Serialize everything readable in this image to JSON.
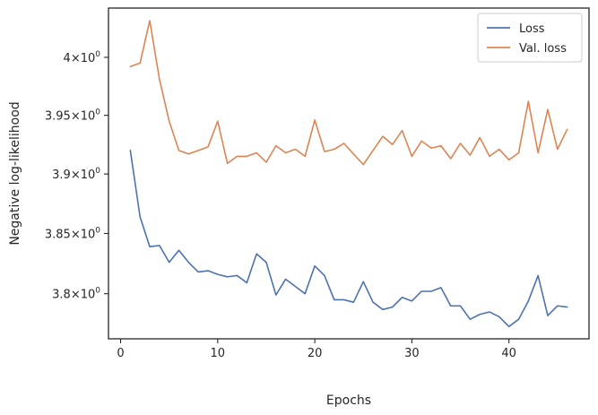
{
  "chart_data": {
    "type": "line",
    "xlabel": "Epochs",
    "ylabel": "Negative log-likelihood",
    "yscale": "log",
    "xlim": [
      -1.25,
      48.25
    ],
    "ylim": [
      3.763,
      4.043
    ],
    "x_ticks": [
      0,
      10,
      20,
      30,
      40
    ],
    "x_tick_labels": [
      "0",
      "10",
      "20",
      "30",
      "40"
    ],
    "y_ticks": [
      3.8,
      3.85,
      3.9,
      3.95,
      4.0
    ],
    "y_tick_labels": [
      {
        "mantissa": "3.8",
        "base": "10",
        "exp": "0"
      },
      {
        "mantissa": "3.85",
        "base": "10",
        "exp": "0"
      },
      {
        "mantissa": "3.9",
        "base": "10",
        "exp": "0"
      },
      {
        "mantissa": "3.95",
        "base": "10",
        "exp": "0"
      },
      {
        "mantissa": "4",
        "base": "10",
        "exp": "0"
      }
    ],
    "grid": false,
    "legend_position": "top-right",
    "x": [
      1,
      2,
      3,
      4,
      5,
      6,
      7,
      8,
      9,
      10,
      11,
      12,
      13,
      14,
      15,
      16,
      17,
      18,
      19,
      20,
      21,
      22,
      23,
      24,
      25,
      26,
      27,
      28,
      29,
      30,
      31,
      32,
      33,
      34,
      35,
      36,
      37,
      38,
      39,
      40,
      41,
      42,
      43,
      44,
      45,
      46
    ],
    "series": [
      {
        "name": "Loss",
        "color": "#4c72b0",
        "values": [
          3.92,
          3.864,
          3.839,
          3.84,
          3.826,
          3.836,
          3.826,
          3.818,
          3.819,
          3.816,
          3.814,
          3.815,
          3.809,
          3.833,
          3.826,
          3.799,
          3.812,
          3.806,
          3.8,
          3.823,
          3.815,
          3.795,
          3.795,
          3.793,
          3.81,
          3.793,
          3.787,
          3.789,
          3.797,
          3.794,
          3.802,
          3.802,
          3.805,
          3.79,
          3.79,
          3.779,
          3.783,
          3.785,
          3.781,
          3.773,
          3.779,
          3.794,
          3.815,
          3.782,
          3.79,
          3.789
        ]
      },
      {
        "name": "Val. loss",
        "color": "#dd8452",
        "values": [
          3.992,
          3.995,
          4.032,
          3.981,
          3.945,
          3.92,
          3.917,
          3.92,
          3.923,
          3.945,
          3.909,
          3.915,
          3.915,
          3.918,
          3.91,
          3.924,
          3.918,
          3.921,
          3.915,
          3.946,
          3.919,
          3.921,
          3.926,
          3.917,
          3.908,
          3.92,
          3.932,
          3.925,
          3.937,
          3.915,
          3.928,
          3.922,
          3.924,
          3.913,
          3.926,
          3.916,
          3.931,
          3.915,
          3.921,
          3.912,
          3.918,
          3.962,
          3.918,
          3.955,
          3.921,
          3.938
        ]
      }
    ]
  }
}
